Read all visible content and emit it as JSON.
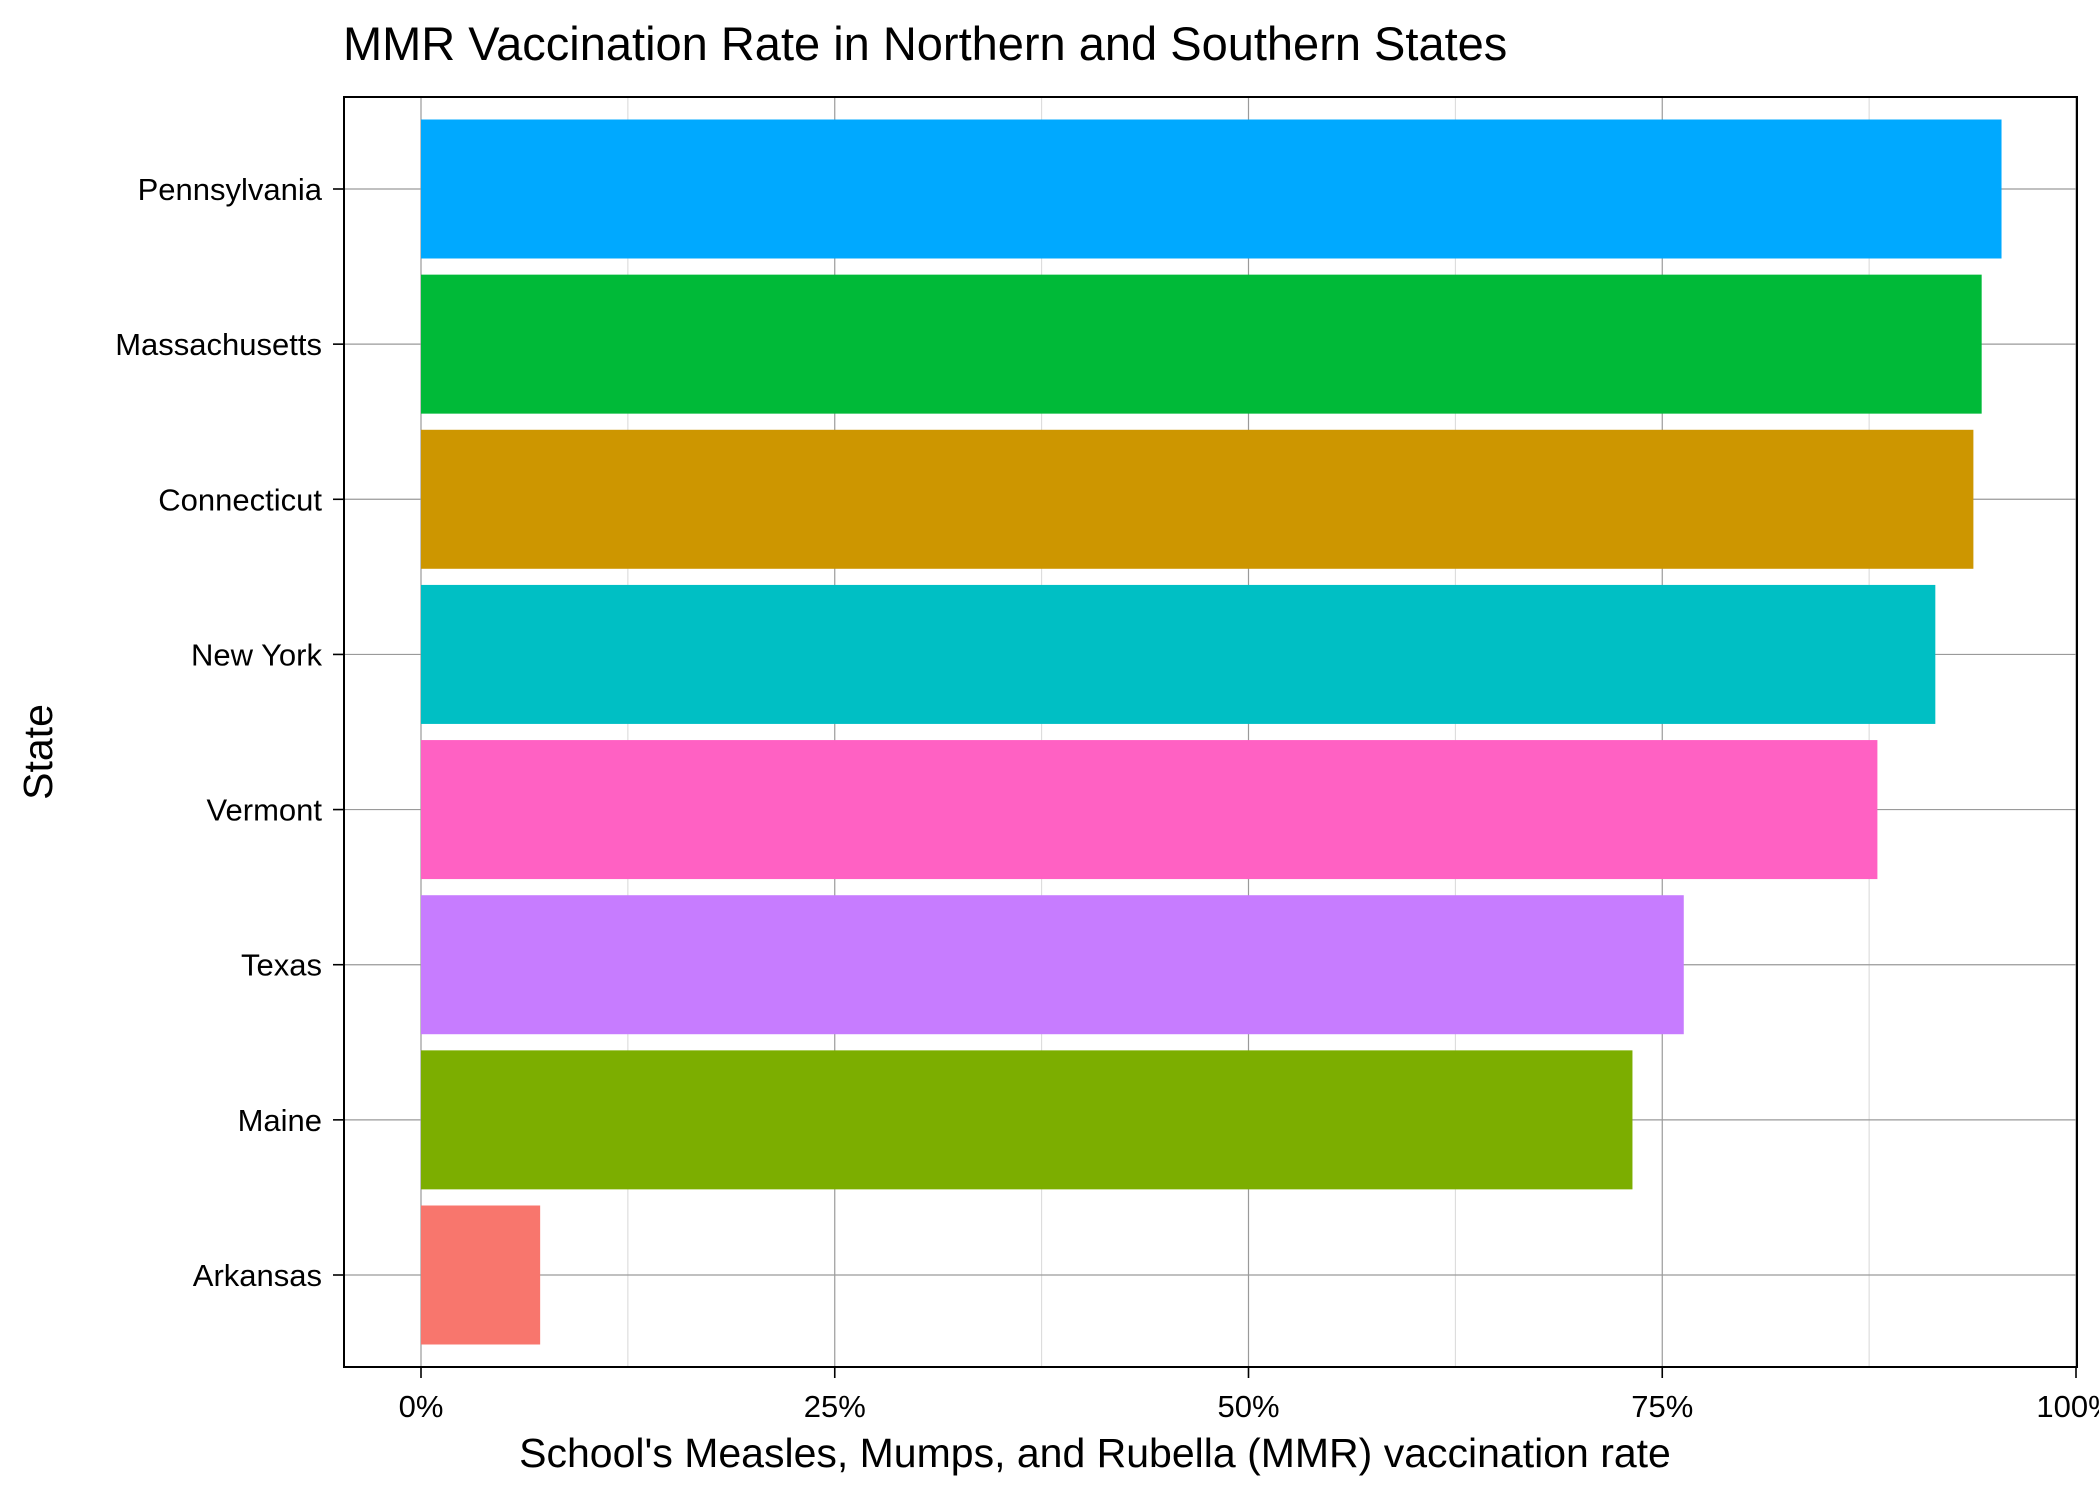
{
  "chart_data": {
    "type": "bar",
    "orientation": "horizontal",
    "title": "MMR Vaccination Rate in Northern and Southern States",
    "xlabel": "School's Measles, Mumps, and Rubella (MMR) vaccination rate",
    "ylabel": "State",
    "xlim": [
      0,
      1
    ],
    "x_ticks": [
      0,
      0.25,
      0.5,
      0.75,
      1
    ],
    "x_tick_labels": [
      "0%",
      "25%",
      "50%",
      "75%",
      "100%"
    ],
    "grid": true,
    "legend": "none",
    "categories": [
      "Arkansas",
      "Maine",
      "Texas",
      "Vermont",
      "New York",
      "Connecticut",
      "Massachusetts",
      "Pennsylvania"
    ],
    "values": [
      0.072,
      0.732,
      0.763,
      0.88,
      0.915,
      0.938,
      0.943,
      0.955
    ],
    "colors": [
      "#F8766D",
      "#7CAE00",
      "#C77CFF",
      "#FF61C3",
      "#00BFC4",
      "#CD9600",
      "#00BA38",
      "#00A9FF"
    ]
  }
}
